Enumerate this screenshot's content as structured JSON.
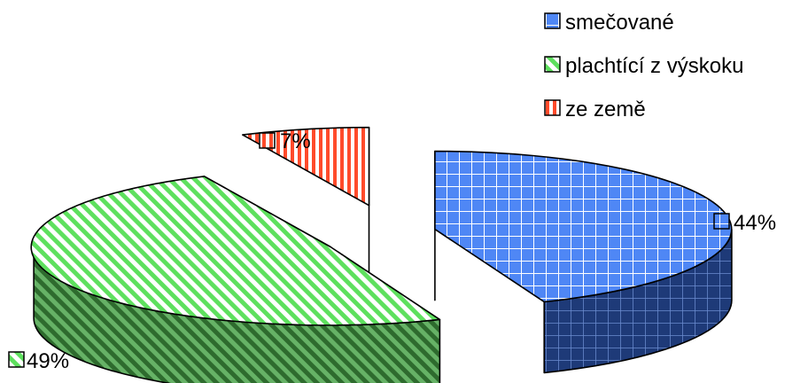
{
  "chart_data": {
    "type": "pie",
    "style": "3d-exploded",
    "title": "",
    "categories": [
      "smečované",
      "plachtící z výskoku",
      "ze země"
    ],
    "values": [
      44,
      49,
      7
    ],
    "data_labels": [
      "44%",
      "49%",
      "7%"
    ],
    "colors": [
      "#4f87f5",
      "#a6f4a6",
      "#ff4b2b"
    ],
    "side_colors": [
      "#1e3a78",
      "#3c8a3c",
      "#8a2a1e"
    ],
    "patterns": [
      "grid",
      "diagonal-stripes",
      "vertical-stripes"
    ],
    "legend": {
      "position": "top-right",
      "entries": [
        "smečované",
        "plachtící z výskoku",
        "ze země"
      ]
    }
  }
}
